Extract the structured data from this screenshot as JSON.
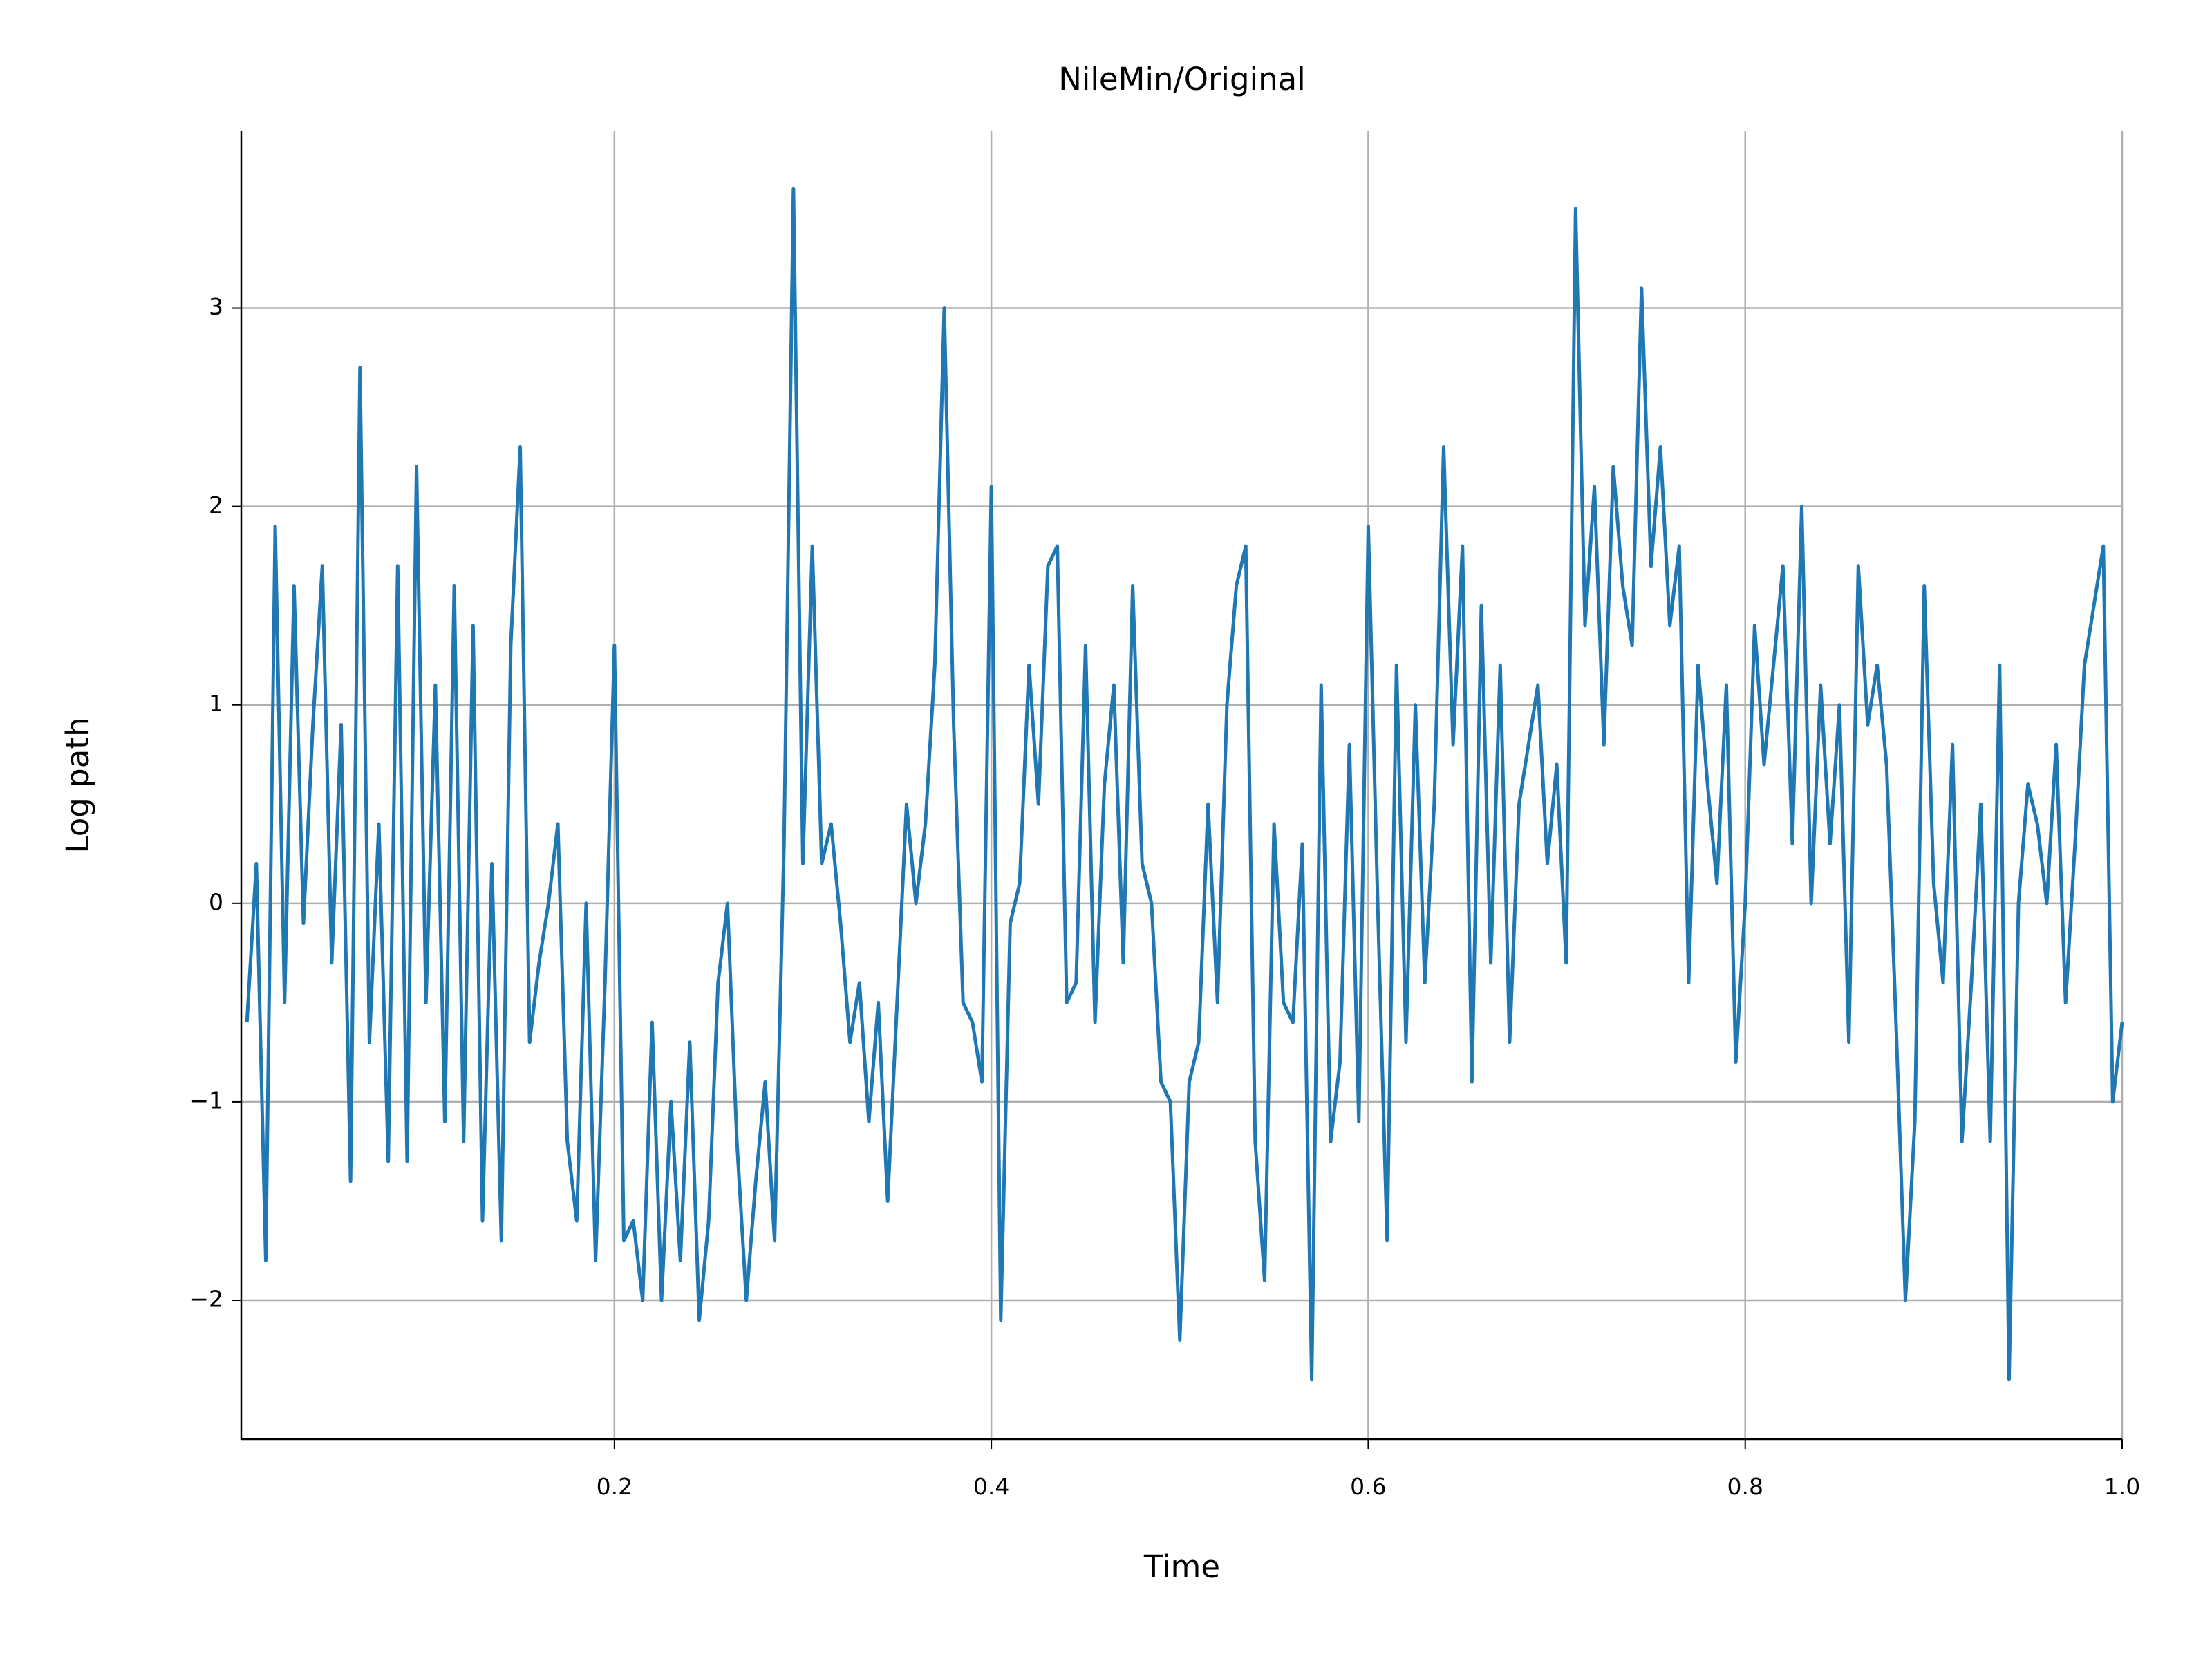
{
  "chart_data": {
    "type": "line",
    "title": "NileMin/Original",
    "xlabel": "Time",
    "ylabel": "Log path",
    "color": "#1f77b4",
    "grid": true,
    "xlim": [
      0.002,
      1.0
    ],
    "ylim": [
      -2.7,
      3.89
    ],
    "xticks": [
      0.2,
      0.4,
      0.6,
      0.8,
      {
        "value": 1,
        "label": "1.0"
      }
    ],
    "yticks": [
      {
        "value": -2,
        "label": "−2"
      },
      {
        "value": -1,
        "label": "−1"
      },
      0,
      1,
      2,
      3
    ],
    "x": [
      0.005,
      0.01,
      0.015,
      0.02,
      0.025,
      0.03,
      0.035,
      0.04,
      0.045,
      0.05,
      0.055,
      0.06,
      0.065,
      0.07,
      0.075,
      0.08,
      0.085,
      0.09,
      0.095,
      0.1,
      0.105,
      0.11,
      0.115,
      0.12,
      0.125,
      0.13,
      0.135,
      0.14,
      0.145,
      0.15,
      0.155,
      0.16,
      0.165,
      0.17,
      0.175,
      0.18,
      0.185,
      0.19,
      0.195,
      0.2,
      0.205,
      0.21,
      0.215,
      0.22,
      0.225,
      0.23,
      0.235,
      0.24,
      0.245,
      0.25,
      0.255,
      0.26,
      0.265,
      0.27,
      0.275,
      0.28,
      0.285,
      0.29,
      0.295,
      0.3,
      0.305,
      0.31,
      0.315,
      0.32,
      0.325,
      0.33,
      0.335,
      0.34,
      0.345,
      0.35,
      0.355,
      0.36,
      0.365,
      0.37,
      0.375,
      0.38,
      0.385,
      0.39,
      0.395,
      0.4,
      0.405,
      0.41,
      0.415,
      0.42,
      0.425,
      0.43,
      0.435,
      0.44,
      0.445,
      0.45,
      0.455,
      0.46,
      0.465,
      0.47,
      0.475,
      0.48,
      0.485,
      0.49,
      0.495,
      0.5,
      0.505,
      0.51,
      0.515,
      0.52,
      0.525,
      0.53,
      0.535,
      0.54,
      0.545,
      0.55,
      0.555,
      0.56,
      0.565,
      0.57,
      0.575,
      0.58,
      0.585,
      0.59,
      0.595,
      0.6,
      0.605,
      0.61,
      0.615,
      0.62,
      0.625,
      0.63,
      0.635,
      0.64,
      0.645,
      0.65,
      0.655,
      0.66,
      0.665,
      0.67,
      0.675,
      0.68,
      0.685,
      0.69,
      0.695,
      0.7,
      0.705,
      0.71,
      0.715,
      0.72,
      0.725,
      0.73,
      0.735,
      0.74,
      0.745,
      0.75,
      0.755,
      0.76,
      0.765,
      0.77,
      0.775,
      0.78,
      0.785,
      0.79,
      0.795,
      0.8,
      0.805,
      0.81,
      0.815,
      0.82,
      0.825,
      0.83,
      0.835,
      0.84,
      0.845,
      0.85,
      0.855,
      0.86,
      0.865,
      0.87,
      0.875,
      0.88,
      0.885,
      0.89,
      0.895,
      0.9,
      0.905,
      0.91,
      0.915,
      0.92,
      0.925,
      0.93,
      0.935,
      0.94,
      0.945,
      0.95,
      0.955,
      0.96,
      0.965,
      0.97,
      0.975,
      0.98,
      0.985,
      0.99,
      0.995,
      1.0
    ],
    "values": [
      -0.6,
      0.2,
      -1.8,
      1.9,
      -0.5,
      1.6,
      -0.1,
      0.9,
      1.7,
      -0.3,
      0.9,
      -1.4,
      2.7,
      -0.7,
      0.4,
      -1.3,
      1.7,
      -1.3,
      2.2,
      -0.5,
      1.1,
      -1.1,
      1.6,
      -1.2,
      1.4,
      -1.6,
      0.2,
      -1.7,
      1.3,
      2.3,
      -0.7,
      -0.3,
      0.0,
      0.4,
      -1.2,
      -1.6,
      0.0,
      -1.8,
      -0.4,
      1.3,
      -1.7,
      -1.6,
      -2.0,
      -0.6,
      -2.0,
      -1.0,
      -1.8,
      -0.7,
      -2.1,
      -1.6,
      -0.4,
      0.0,
      -1.2,
      -2.0,
      -1.4,
      -0.9,
      -1.7,
      0.3,
      3.6,
      0.2,
      1.8,
      0.2,
      0.4,
      -0.1,
      -0.7,
      -0.4,
      -1.1,
      -0.5,
      -1.5,
      -0.5,
      0.5,
      0.0,
      0.4,
      1.2,
      3.0,
      0.9,
      -0.5,
      -0.6,
      -0.9,
      2.1,
      -2.1,
      -0.1,
      0.1,
      1.2,
      0.5,
      1.7,
      1.8,
      -0.5,
      -0.4,
      1.3,
      -0.6,
      0.6,
      1.1,
      -0.3,
      1.6,
      0.2,
      0.0,
      -0.9,
      -1.0,
      -2.2,
      -0.9,
      -0.7,
      0.5,
      -0.5,
      1.0,
      1.6,
      1.8,
      -1.2,
      -1.9,
      0.4,
      -0.5,
      -0.6,
      0.3,
      -2.4,
      1.1,
      -1.2,
      -0.8,
      0.8,
      -1.1,
      1.9,
      0.0,
      -1.7,
      1.2,
      -0.7,
      1.0,
      -0.4,
      0.5,
      2.3,
      0.8,
      1.8,
      -0.9,
      1.5,
      -0.3,
      1.2,
      -0.7,
      0.5,
      0.8,
      1.1,
      0.2,
      0.7,
      -0.3,
      3.5,
      1.4,
      2.1,
      0.8,
      2.2,
      1.6,
      1.3,
      3.1,
      1.7,
      2.3,
      1.4,
      1.8,
      -0.4,
      1.2,
      0.6,
      0.1,
      1.1,
      -0.8,
      0.0,
      1.4,
      0.7,
      1.2,
      1.7,
      0.3,
      2.0,
      0.0,
      1.1,
      0.3,
      1.0,
      -0.7,
      1.7,
      0.9,
      1.2,
      0.7,
      -0.6,
      -2.0,
      -1.1,
      1.6,
      0.1,
      -0.4,
      0.8,
      -1.2,
      -0.4,
      0.5,
      -1.2,
      1.2,
      -2.4,
      0.0,
      0.6,
      0.4,
      0.0,
      0.8,
      -0.5,
      0.3,
      1.2,
      1.5,
      1.8,
      -1.0,
      -0.6
    ]
  }
}
